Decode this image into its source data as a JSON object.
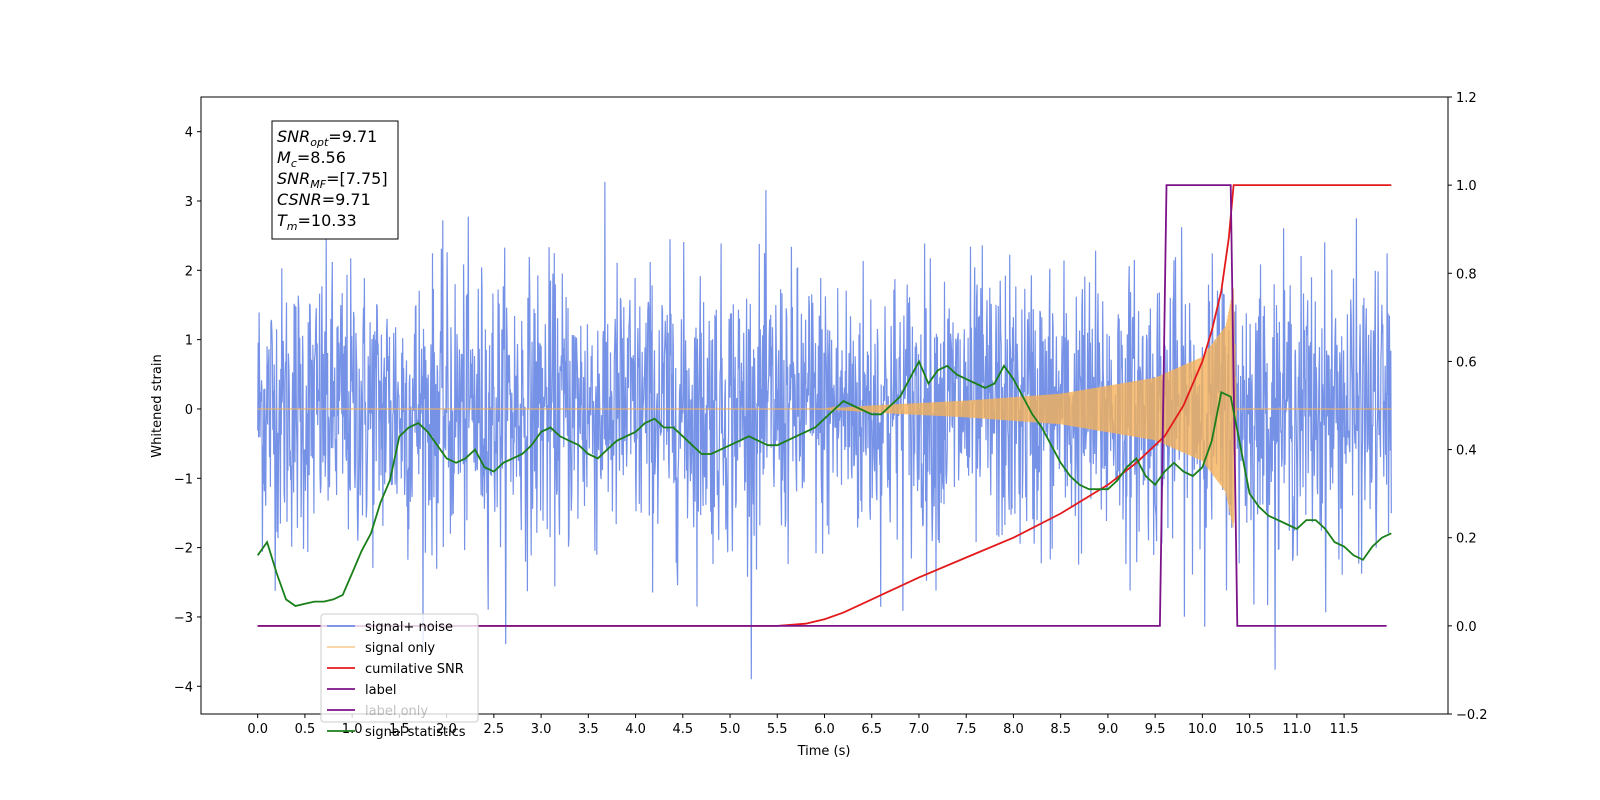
{
  "chart_data": {
    "type": "line",
    "xlabel": "Time (s)",
    "ylabel": "Whitened strain",
    "xlim": [
      -0.6,
      12.6
    ],
    "ylim": [
      -4.4,
      4.5
    ],
    "y2lim": [
      -0.2,
      1.2
    ],
    "x_ticks": [
      "0.0",
      "0.5",
      "1.0",
      "1.5",
      "2.0",
      "2.5",
      "3.0",
      "3.5",
      "4.0",
      "4.5",
      "5.0",
      "5.5",
      "6.0",
      "6.5",
      "7.0",
      "7.5",
      "8.0",
      "8.5",
      "9.0",
      "9.5",
      "10.0",
      "10.5",
      "11.0",
      "11.5"
    ],
    "y_ticks": [
      "4",
      "3",
      "2",
      "1",
      "0",
      "−1",
      "−2",
      "−3",
      "−4"
    ],
    "y2_ticks": [
      "1.2",
      "1.0",
      "0.8",
      "0.6",
      "0.4",
      "0.2",
      "0.0",
      "−0.2"
    ],
    "grid": false,
    "legend_position": "lower-left",
    "stats_box": {
      "lines": [
        {
          "base": "SNR",
          "sub": "opt",
          "value": "=9.71"
        },
        {
          "base": "M",
          "sub": "c",
          "value": "=8.56"
        },
        {
          "base": "SNR",
          "sub": "MF",
          "value": "=[7.75]"
        },
        {
          "base": "CSNR",
          "sub": "",
          "value": "=9.71"
        },
        {
          "base": "T",
          "sub": "m",
          "value": "=10.33"
        }
      ]
    },
    "series": [
      {
        "name": "signal+ noise",
        "color": "#6f8ce6",
        "axis": "left",
        "kind": "noise",
        "x_range": [
          0.0,
          12.0
        ],
        "noise_std": 1.0,
        "noise_peak_max": 4.1,
        "noise_trough_min": -3.9
      },
      {
        "name": "signal only",
        "color": "#f5b25a",
        "axis": "left",
        "kind": "chirp",
        "x_range": [
          0.0,
          12.0
        ],
        "envelope": [
          [
            0.0,
            0.0
          ],
          [
            6.0,
            0.0
          ],
          [
            6.5,
            0.05
          ],
          [
            7.5,
            0.12
          ],
          [
            8.5,
            0.22
          ],
          [
            9.5,
            0.45
          ],
          [
            10.0,
            0.75
          ],
          [
            10.25,
            1.2
          ],
          [
            10.33,
            1.75
          ],
          [
            10.36,
            0.0
          ],
          [
            12.0,
            0.0
          ]
        ]
      },
      {
        "name": "cumilative SNR",
        "color": "#e31a1c",
        "axis": "right",
        "points": [
          [
            0.0,
            0.0
          ],
          [
            5.0,
            0.0
          ],
          [
            5.5,
            0.0
          ],
          [
            5.8,
            0.005
          ],
          [
            6.0,
            0.015
          ],
          [
            6.2,
            0.03
          ],
          [
            6.5,
            0.06
          ],
          [
            7.0,
            0.11
          ],
          [
            7.5,
            0.155
          ],
          [
            8.0,
            0.2
          ],
          [
            8.5,
            0.255
          ],
          [
            9.0,
            0.32
          ],
          [
            9.3,
            0.37
          ],
          [
            9.6,
            0.43
          ],
          [
            9.8,
            0.5
          ],
          [
            10.0,
            0.6
          ],
          [
            10.1,
            0.67
          ],
          [
            10.2,
            0.76
          ],
          [
            10.28,
            0.88
          ],
          [
            10.33,
            1.0
          ],
          [
            12.0,
            1.0
          ]
        ]
      },
      {
        "name": "label",
        "color": "#7b1288",
        "axis": "right",
        "points": [
          [
            0.0,
            0.0
          ],
          [
            9.55,
            0.0
          ],
          [
            9.62,
            1.0
          ],
          [
            10.3,
            1.0
          ],
          [
            10.37,
            0.0
          ],
          [
            11.95,
            0.0
          ]
        ]
      },
      {
        "name": "label only",
        "color": "#7b1288",
        "axis": "right",
        "hidden_in_plot": true
      },
      {
        "name": "signal statistics",
        "color": "#1a7f1a",
        "axis": "right",
        "points": [
          [
            0.0,
            0.16
          ],
          [
            0.1,
            0.19
          ],
          [
            0.2,
            0.12
          ],
          [
            0.3,
            0.06
          ],
          [
            0.4,
            0.045
          ],
          [
            0.5,
            0.05
          ],
          [
            0.6,
            0.055
          ],
          [
            0.7,
            0.055
          ],
          [
            0.8,
            0.06
          ],
          [
            0.9,
            0.07
          ],
          [
            1.0,
            0.12
          ],
          [
            1.1,
            0.17
          ],
          [
            1.2,
            0.21
          ],
          [
            1.3,
            0.28
          ],
          [
            1.4,
            0.33
          ],
          [
            1.5,
            0.43
          ],
          [
            1.6,
            0.45
          ],
          [
            1.7,
            0.46
          ],
          [
            1.8,
            0.44
          ],
          [
            1.9,
            0.41
          ],
          [
            2.0,
            0.38
          ],
          [
            2.1,
            0.37
          ],
          [
            2.2,
            0.38
          ],
          [
            2.3,
            0.4
          ],
          [
            2.4,
            0.36
          ],
          [
            2.5,
            0.35
          ],
          [
            2.6,
            0.37
          ],
          [
            2.7,
            0.38
          ],
          [
            2.8,
            0.39
          ],
          [
            2.9,
            0.41
          ],
          [
            3.0,
            0.44
          ],
          [
            3.1,
            0.45
          ],
          [
            3.2,
            0.43
          ],
          [
            3.3,
            0.42
          ],
          [
            3.4,
            0.41
          ],
          [
            3.5,
            0.39
          ],
          [
            3.6,
            0.38
          ],
          [
            3.7,
            0.4
          ],
          [
            3.8,
            0.42
          ],
          [
            3.9,
            0.43
          ],
          [
            4.0,
            0.44
          ],
          [
            4.1,
            0.46
          ],
          [
            4.2,
            0.47
          ],
          [
            4.3,
            0.45
          ],
          [
            4.4,
            0.45
          ],
          [
            4.5,
            0.43
          ],
          [
            4.6,
            0.41
          ],
          [
            4.7,
            0.39
          ],
          [
            4.8,
            0.39
          ],
          [
            4.9,
            0.4
          ],
          [
            5.0,
            0.41
          ],
          [
            5.1,
            0.42
          ],
          [
            5.2,
            0.43
          ],
          [
            5.3,
            0.42
          ],
          [
            5.4,
            0.41
          ],
          [
            5.5,
            0.41
          ],
          [
            5.6,
            0.42
          ],
          [
            5.7,
            0.43
          ],
          [
            5.8,
            0.44
          ],
          [
            5.9,
            0.45
          ],
          [
            6.0,
            0.47
          ],
          [
            6.1,
            0.49
          ],
          [
            6.2,
            0.51
          ],
          [
            6.3,
            0.5
          ],
          [
            6.4,
            0.49
          ],
          [
            6.5,
            0.48
          ],
          [
            6.6,
            0.48
          ],
          [
            6.7,
            0.5
          ],
          [
            6.8,
            0.52
          ],
          [
            6.9,
            0.56
          ],
          [
            7.0,
            0.6
          ],
          [
            7.1,
            0.55
          ],
          [
            7.2,
            0.58
          ],
          [
            7.3,
            0.59
          ],
          [
            7.4,
            0.57
          ],
          [
            7.5,
            0.56
          ],
          [
            7.6,
            0.55
          ],
          [
            7.7,
            0.54
          ],
          [
            7.8,
            0.55
          ],
          [
            7.9,
            0.59
          ],
          [
            8.0,
            0.56
          ],
          [
            8.1,
            0.52
          ],
          [
            8.2,
            0.48
          ],
          [
            8.3,
            0.45
          ],
          [
            8.4,
            0.41
          ],
          [
            8.5,
            0.37
          ],
          [
            8.6,
            0.34
          ],
          [
            8.7,
            0.32
          ],
          [
            8.8,
            0.31
          ],
          [
            8.9,
            0.31
          ],
          [
            9.0,
            0.31
          ],
          [
            9.1,
            0.33
          ],
          [
            9.2,
            0.36
          ],
          [
            9.3,
            0.38
          ],
          [
            9.4,
            0.34
          ],
          [
            9.5,
            0.32
          ],
          [
            9.6,
            0.35
          ],
          [
            9.7,
            0.37
          ],
          [
            9.8,
            0.35
          ],
          [
            9.9,
            0.34
          ],
          [
            10.0,
            0.36
          ],
          [
            10.1,
            0.42
          ],
          [
            10.2,
            0.53
          ],
          [
            10.3,
            0.52
          ],
          [
            10.4,
            0.41
          ],
          [
            10.5,
            0.3
          ],
          [
            10.6,
            0.27
          ],
          [
            10.7,
            0.25
          ],
          [
            10.8,
            0.24
          ],
          [
            10.9,
            0.23
          ],
          [
            11.0,
            0.22
          ],
          [
            11.1,
            0.24
          ],
          [
            11.2,
            0.24
          ],
          [
            11.3,
            0.22
          ],
          [
            11.4,
            0.19
          ],
          [
            11.5,
            0.18
          ],
          [
            11.6,
            0.16
          ],
          [
            11.7,
            0.15
          ],
          [
            11.8,
            0.18
          ],
          [
            11.9,
            0.2
          ],
          [
            12.0,
            0.21
          ]
        ]
      }
    ]
  }
}
